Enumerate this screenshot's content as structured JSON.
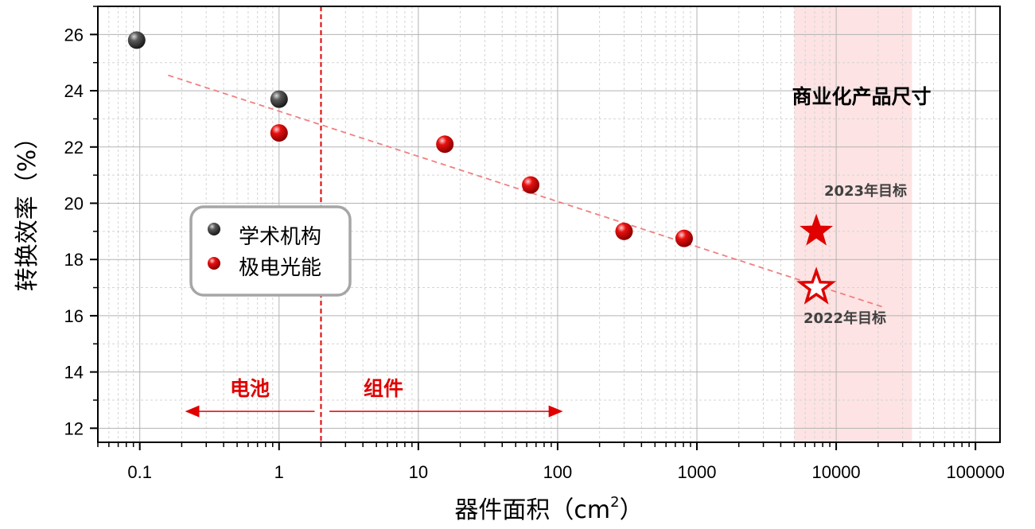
{
  "chart_data": {
    "type": "scatter",
    "xscale": "log",
    "xlim": [
      0.05,
      150000
    ],
    "ylim": [
      11.5,
      27
    ],
    "xticks": [
      0.1,
      1,
      10,
      100,
      1000,
      10000,
      100000
    ],
    "xtick_labels": [
      "0.1",
      "1",
      "10",
      "100",
      "1000",
      "10000",
      "100000"
    ],
    "yticks": [
      12,
      14,
      16,
      18,
      20,
      22,
      24,
      26
    ],
    "ytick_labels": [
      "12",
      "14",
      "16",
      "18",
      "20",
      "22",
      "24",
      "26"
    ],
    "grid": true,
    "xlabel_main": "器件面积（cm",
    "xlabel_sup": "2",
    "xlabel_close": "）",
    "ylabel": "转换效率（%）",
    "legend_position": "left-center",
    "series": [
      {
        "name": "学术机构",
        "color": "#3a3a3a",
        "x": [
          0.095,
          1.0
        ],
        "y": [
          25.8,
          23.7
        ]
      },
      {
        "name": "极电光能",
        "color": "#e00000",
        "x": [
          1.0,
          15.5,
          64,
          300,
          810
        ],
        "y": [
          22.5,
          22.1,
          20.65,
          19.0,
          18.75
        ]
      }
    ],
    "trendline": {
      "x": [
        0.16,
        22000
      ],
      "y": [
        24.55,
        16.3
      ],
      "color": "#f08080",
      "style": "dashed"
    },
    "divider": {
      "x": 2.0,
      "color": "#e00000",
      "style": "dashed"
    },
    "targets": [
      {
        "label": "2023年目标",
        "x": 7200,
        "y": 19.0,
        "marker": "filled-star",
        "color": "#e00000"
      },
      {
        "label": "2022年目标",
        "x": 7200,
        "y": 17.0,
        "marker": "hollow-star",
        "color": "#e00000"
      }
    ],
    "commercial_band": {
      "x": [
        5000,
        35000
      ],
      "label": "商业化产品尺寸",
      "color": "#fde3e3"
    },
    "arrows": [
      {
        "label": "电池",
        "from": 1.8,
        "to": 0.22,
        "y": 12.6
      },
      {
        "label": "组件",
        "from": 2.3,
        "to": 105,
        "y": 12.6
      }
    ]
  }
}
